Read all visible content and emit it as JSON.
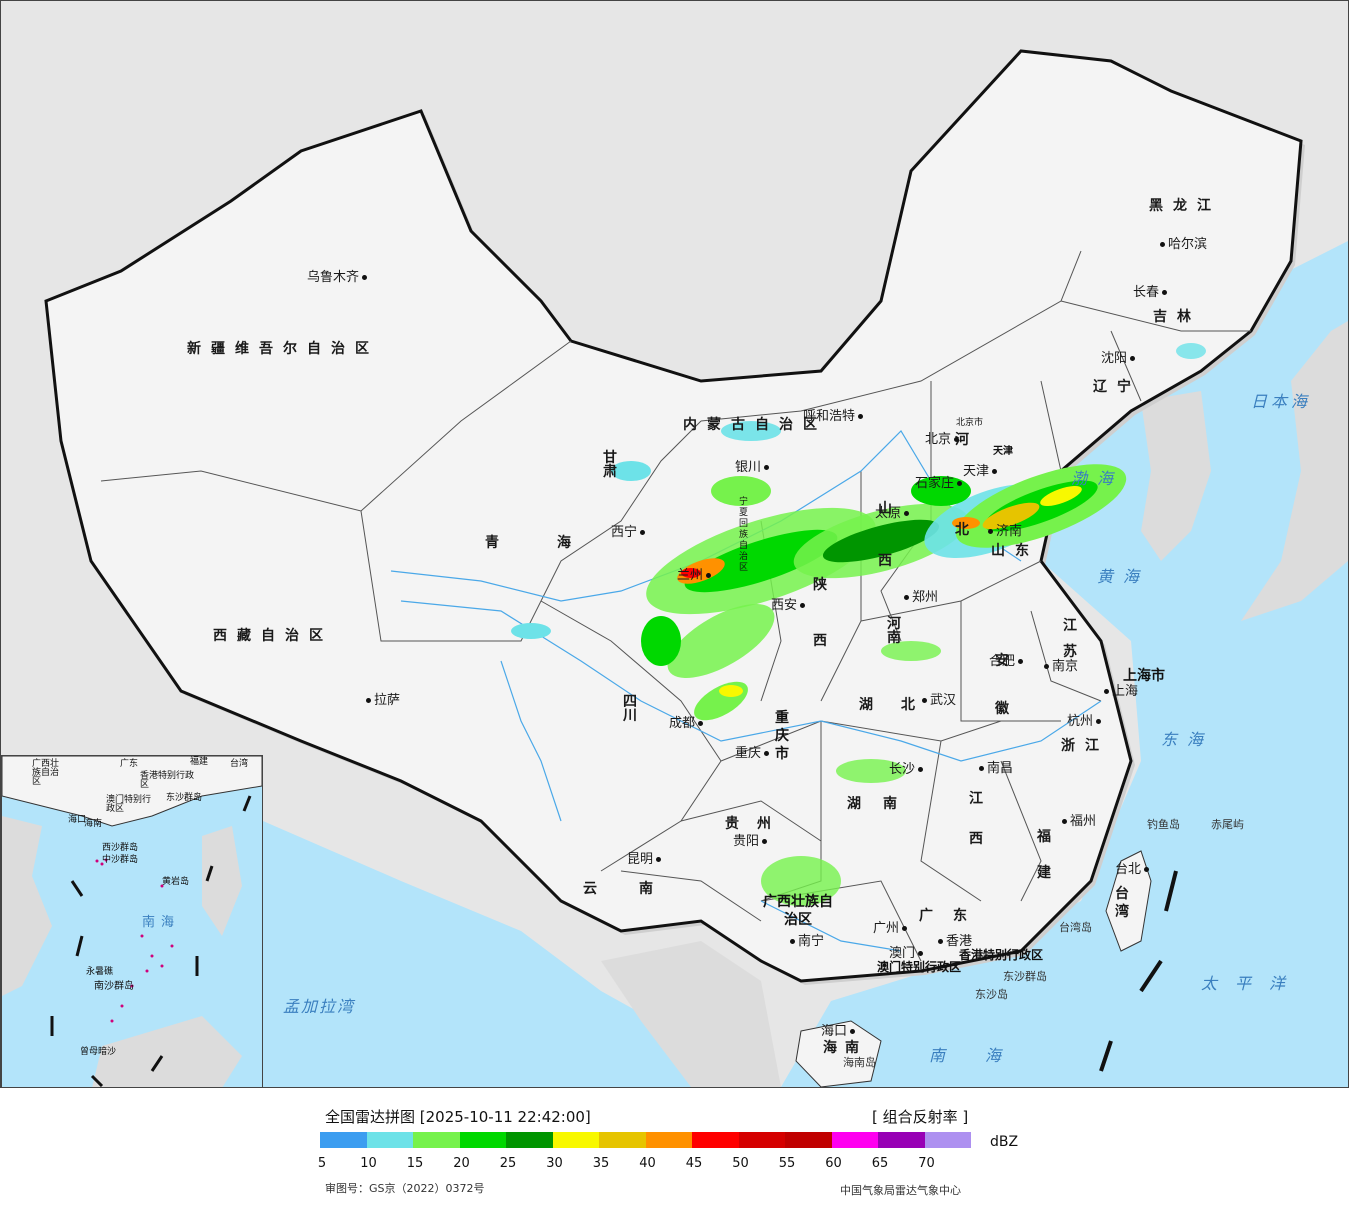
{
  "map": {
    "provinces": [
      {
        "id": "xinjiang",
        "name": "新疆维吾尔自治区"
      },
      {
        "id": "xizang",
        "name": "西藏自治区"
      },
      {
        "id": "qinghai",
        "name": "青海"
      },
      {
        "id": "gansu",
        "name": "甘肃"
      },
      {
        "id": "neimenggu",
        "name": "内蒙古自治区"
      },
      {
        "id": "heilongjiang",
        "name": "黑龙江"
      },
      {
        "id": "jilin",
        "name": "吉林"
      },
      {
        "id": "liaoning",
        "name": "辽宁"
      },
      {
        "id": "hebei",
        "name": "河北"
      },
      {
        "id": "shanxi",
        "name": "山西"
      },
      {
        "id": "shaanxi",
        "name": "陕西"
      },
      {
        "id": "ningxia",
        "name": "宁夏回族自治区"
      },
      {
        "id": "shandong",
        "name": "山东"
      },
      {
        "id": "henan",
        "name": "河南"
      },
      {
        "id": "jiangsu",
        "name": "江苏"
      },
      {
        "id": "anhui",
        "name": "安徽"
      },
      {
        "id": "shanghai",
        "name": "上海市"
      },
      {
        "id": "zhejiang",
        "name": "浙江"
      },
      {
        "id": "hubei",
        "name": "湖北"
      },
      {
        "id": "sichuan",
        "name": "四川"
      },
      {
        "id": "chongqing",
        "name": "重庆市"
      },
      {
        "id": "hunan",
        "name": "湖南"
      },
      {
        "id": "jiangxi",
        "name": "江西"
      },
      {
        "id": "fujian",
        "name": "福建"
      },
      {
        "id": "guizhou",
        "name": "贵州"
      },
      {
        "id": "yunnan",
        "name": "云南"
      },
      {
        "id": "guangxi",
        "name": "广西壮族自治区"
      },
      {
        "id": "guangdong",
        "name": "广东"
      },
      {
        "id": "hainan",
        "name": "海南"
      },
      {
        "id": "taiwan",
        "name": "台湾"
      },
      {
        "id": "hongkong",
        "name": "香港特别行政区"
      },
      {
        "id": "macau",
        "name": "澳门特别行政区"
      },
      {
        "id": "beijing",
        "name": "北京市"
      },
      {
        "id": "tianjin",
        "name": "天津"
      }
    ],
    "cities": [
      {
        "id": "urumqi",
        "name": "乌鲁木齐"
      },
      {
        "id": "lhasa",
        "name": "拉萨"
      },
      {
        "id": "xining",
        "name": "西宁"
      },
      {
        "id": "lanzhou",
        "name": "兰州"
      },
      {
        "id": "yinchuan",
        "name": "银川"
      },
      {
        "id": "hohhot",
        "name": "呼和浩特"
      },
      {
        "id": "beijing",
        "name": "北京"
      },
      {
        "id": "tianjin",
        "name": "天津"
      },
      {
        "id": "shijiazhuang",
        "name": "石家庄"
      },
      {
        "id": "taiyuan",
        "name": "太原"
      },
      {
        "id": "jinan",
        "name": "济南"
      },
      {
        "id": "zhengzhou",
        "name": "郑州"
      },
      {
        "id": "xian",
        "name": "西安"
      },
      {
        "id": "harbin",
        "name": "哈尔滨"
      },
      {
        "id": "changchun",
        "name": "长春"
      },
      {
        "id": "shenyang",
        "name": "沈阳"
      },
      {
        "id": "hefei",
        "name": "合肥"
      },
      {
        "id": "nanjing",
        "name": "南京"
      },
      {
        "id": "shanghai",
        "name": "上海"
      },
      {
        "id": "hangzhou",
        "name": "杭州"
      },
      {
        "id": "wuhan",
        "name": "武汉"
      },
      {
        "id": "chengdu",
        "name": "成都"
      },
      {
        "id": "chongqing",
        "name": "重庆"
      },
      {
        "id": "changsha",
        "name": "长沙"
      },
      {
        "id": "nanchang",
        "name": "南昌"
      },
      {
        "id": "fuzhou",
        "name": "福州"
      },
      {
        "id": "guiyang",
        "name": "贵阳"
      },
      {
        "id": "kunming",
        "name": "昆明"
      },
      {
        "id": "nanning",
        "name": "南宁"
      },
      {
        "id": "guangzhou",
        "name": "广州"
      },
      {
        "id": "hongkong",
        "name": "香港"
      },
      {
        "id": "macau",
        "name": "澳门"
      },
      {
        "id": "haikou",
        "name": "海口"
      },
      {
        "id": "taipei",
        "name": "台北"
      }
    ],
    "seas": [
      {
        "id": "bohai",
        "name": "渤海"
      },
      {
        "id": "huanghai",
        "name": "黄海"
      },
      {
        "id": "donghai",
        "name": "东海"
      },
      {
        "id": "nanhai",
        "name": "南海"
      },
      {
        "id": "taipingyang",
        "name": "太平洋"
      },
      {
        "id": "ribenhai",
        "name": "日本海"
      },
      {
        "id": "mengjialawan",
        "name": "孟加拉湾"
      }
    ],
    "islands": [
      {
        "id": "diaoyu",
        "name": "钓鱼岛"
      },
      {
        "id": "chiwei",
        "name": "赤尾屿"
      },
      {
        "id": "dongsha",
        "name": "东沙群岛"
      },
      {
        "id": "taiwandao",
        "name": "台湾岛"
      },
      {
        "id": "hainandao",
        "name": "海南岛"
      },
      {
        "id": "dongshadao",
        "name": "东沙岛"
      }
    ],
    "inset": {
      "labels": [
        "广西壮族自治区",
        "广东",
        "福建",
        "台湾",
        "香港特别行政区",
        "澳门特别行政区",
        "海南",
        "东沙群岛",
        "西沙群岛",
        "中沙群岛",
        "黄岩岛",
        "南海",
        "永暑礁",
        "南沙群岛",
        "曾母暗沙",
        "海口"
      ]
    }
  },
  "legend": {
    "title": "全国雷达拼图 [2025-10-11 22:42:00]",
    "product": "[ 组合反射率 ]",
    "unit": "dBZ",
    "ticks": [
      "5",
      "10",
      "15",
      "20",
      "25",
      "30",
      "35",
      "40",
      "45",
      "50",
      "55",
      "60",
      "65",
      "70"
    ],
    "colors": [
      "#3c9df0",
      "#6de2e8",
      "#76f24c",
      "#00d800",
      "#009500",
      "#f8f800",
      "#e6c400",
      "#ff9100",
      "#ff0000",
      "#d50000",
      "#c00000",
      "#ff00f0",
      "#9800b5",
      "#ad90f0"
    ],
    "approval": "审图号：GS京（2022）0372号",
    "source": "中国气象局雷达气象中心"
  }
}
